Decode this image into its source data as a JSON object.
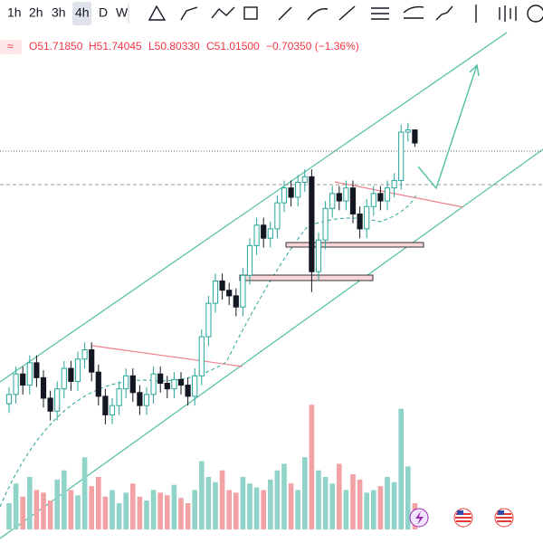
{
  "toolbar": {
    "intervals": [
      "1h",
      "2h",
      "3h",
      "4h",
      "D",
      "W"
    ]
  },
  "legend": {
    "open": "O51.71850",
    "high": "H51.74045",
    "low": "L50.80330",
    "close": "C51.01500",
    "change": "−0.70350 (−1.36%)"
  },
  "chart_data": {
    "type": "candlestick",
    "up_color": "#26a69a",
    "down_color": "#131722",
    "volume_up_color": "#8fd3c9",
    "volume_down_color": "#f2a1a4",
    "ylim": [
      30,
      57
    ],
    "vlim": [
      0,
      100
    ],
    "open": [
      37.0,
      37.5,
      38.6,
      38.0,
      39.2,
      38.4,
      37.3,
      36.6,
      37.8,
      38.9,
      38.2,
      39.4,
      39.9,
      38.7,
      37.4,
      36.4,
      36.9,
      37.8,
      38.5,
      37.6,
      36.9,
      37.5,
      38.6,
      38.1,
      37.8,
      38.3,
      38.0,
      37.4,
      38.5,
      40.6,
      42.4,
      43.6,
      43.1,
      42.8,
      42.2,
      43.9,
      45.5,
      46.6,
      45.9,
      46.4,
      47.8,
      48.6,
      48.1,
      48.9,
      49.2,
      44.1,
      45.8,
      47.5,
      48.3,
      47.9,
      48.6,
      47.2,
      46.4,
      47.6,
      48.3,
      47.9,
      48.6,
      49.0,
      51.6,
      51.7185
    ],
    "high": [
      37.9,
      39.0,
      39.0,
      39.6,
      39.6,
      38.8,
      37.7,
      38.2,
      39.3,
      39.3,
      39.8,
      40.3,
      40.3,
      39.1,
      37.8,
      37.3,
      38.2,
      38.9,
      38.9,
      38.0,
      37.9,
      39.0,
      39.0,
      38.5,
      38.7,
      38.7,
      38.4,
      38.9,
      41.0,
      42.8,
      44.0,
      44.0,
      43.5,
      43.2,
      44.3,
      45.9,
      47.0,
      47.0,
      46.8,
      48.2,
      49.0,
      49.0,
      49.3,
      49.6,
      49.6,
      46.2,
      47.9,
      48.7,
      48.7,
      49.0,
      49.0,
      47.6,
      48.0,
      48.7,
      48.7,
      49.0,
      49.4,
      52.0,
      52.1,
      51.74045
    ],
    "low": [
      36.5,
      37.0,
      37.5,
      37.5,
      37.9,
      36.8,
      36.1,
      36.1,
      37.3,
      37.7,
      37.7,
      38.9,
      38.2,
      36.9,
      35.9,
      35.9,
      36.4,
      37.3,
      37.1,
      36.4,
      36.4,
      37.0,
      37.6,
      37.3,
      37.3,
      37.5,
      36.9,
      36.9,
      38.0,
      40.1,
      41.9,
      42.6,
      42.3,
      41.7,
      41.7,
      43.4,
      45.0,
      45.4,
      45.4,
      45.9,
      47.3,
      47.6,
      47.6,
      48.4,
      43.0,
      43.6,
      45.3,
      47.0,
      47.4,
      47.4,
      46.7,
      45.9,
      45.9,
      47.1,
      47.4,
      47.4,
      48.1,
      48.5,
      51.1,
      50.8033
    ],
    "close": [
      37.5,
      38.6,
      38.0,
      39.2,
      38.4,
      37.3,
      36.6,
      37.8,
      38.9,
      38.2,
      39.4,
      39.9,
      38.7,
      37.4,
      36.4,
      36.9,
      37.8,
      38.5,
      37.6,
      36.9,
      37.5,
      38.6,
      38.1,
      37.8,
      38.3,
      38.0,
      37.4,
      38.5,
      40.6,
      42.4,
      43.6,
      43.1,
      42.8,
      42.2,
      43.9,
      45.5,
      46.6,
      45.9,
      46.4,
      47.8,
      48.6,
      48.1,
      48.9,
      49.2,
      44.1,
      45.8,
      47.5,
      48.3,
      47.9,
      48.6,
      47.2,
      46.4,
      47.6,
      48.3,
      47.9,
      48.6,
      49.0,
      51.6,
      51.7185,
      51.015
    ],
    "volumes": [
      20,
      35,
      25,
      40,
      30,
      28,
      22,
      38,
      45,
      30,
      26,
      55,
      33,
      40,
      25,
      30,
      20,
      28,
      35,
      25,
      22,
      30,
      28,
      26,
      34,
      24,
      20,
      30,
      52,
      40,
      36,
      45,
      30,
      28,
      40,
      35,
      32,
      30,
      38,
      45,
      50,
      35,
      30,
      55,
      95,
      45,
      40,
      35,
      50,
      30,
      42,
      38,
      28,
      30,
      33,
      40,
      36,
      92,
      48,
      20
    ]
  }
}
